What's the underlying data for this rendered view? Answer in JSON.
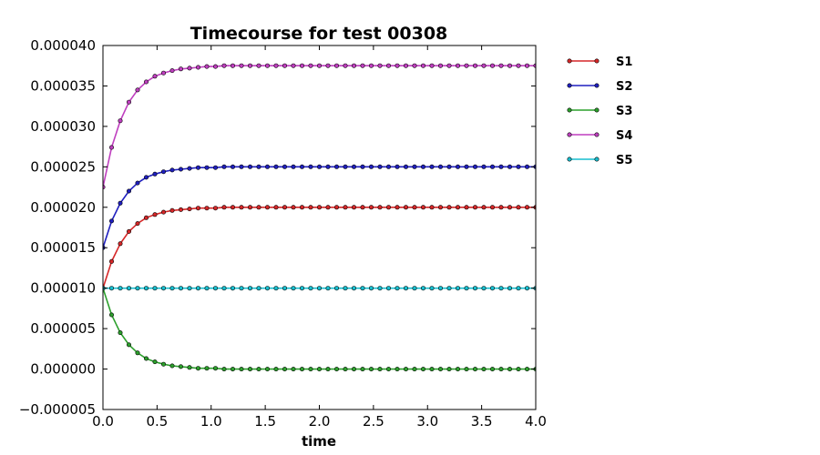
{
  "chart_data": {
    "type": "line",
    "title": "Timecourse for test 00308",
    "xlabel": "time",
    "ylabel": "",
    "xlim": [
      0.0,
      4.0
    ],
    "ylim": [
      -5e-06,
      4e-05
    ],
    "xticks": [
      "0.0",
      "0.5",
      "1.0",
      "1.5",
      "2.0",
      "2.5",
      "3.0",
      "3.5",
      "4.0"
    ],
    "yticks": [
      "−0.000005",
      "0.000000",
      "0.000005",
      "0.000010",
      "0.000015",
      "0.000020",
      "0.000025",
      "0.000030",
      "0.000035",
      "0.000040"
    ],
    "grid": false,
    "legend_position": "right, outside plot area",
    "x": [
      0.0,
      0.08,
      0.16,
      0.24,
      0.32,
      0.4,
      0.48,
      0.56,
      0.64,
      0.72,
      0.8,
      0.88,
      0.96,
      1.04,
      1.12,
      1.2,
      1.28,
      1.36,
      1.44,
      1.52,
      1.6,
      1.68,
      1.76,
      1.84,
      1.92,
      2.0,
      2.08,
      2.16,
      2.24,
      2.32,
      2.4,
      2.48,
      2.56,
      2.64,
      2.72,
      2.8,
      2.88,
      2.96,
      3.04,
      3.12,
      3.2,
      3.28,
      3.36,
      3.44,
      3.52,
      3.6,
      3.68,
      3.76,
      3.84,
      3.92,
      4.0
    ],
    "series": [
      {
        "name": "S1",
        "color": "#d62728",
        "values": [
          1e-05,
          1.33e-05,
          1.55e-05,
          1.7e-05,
          1.8e-05,
          1.87e-05,
          1.91e-05,
          1.94e-05,
          1.96e-05,
          1.97e-05,
          1.98e-05,
          1.99e-05,
          1.99e-05,
          1.99e-05,
          2e-05,
          2e-05,
          2e-05,
          2e-05,
          2e-05,
          2e-05,
          2e-05,
          2e-05,
          2e-05,
          2e-05,
          2e-05,
          2e-05,
          2e-05,
          2e-05,
          2e-05,
          2e-05,
          2e-05,
          2e-05,
          2e-05,
          2e-05,
          2e-05,
          2e-05,
          2e-05,
          2e-05,
          2e-05,
          2e-05,
          2e-05,
          2e-05,
          2e-05,
          2e-05,
          2e-05,
          2e-05,
          2e-05,
          2e-05,
          2e-05,
          2e-05,
          2e-05
        ]
      },
      {
        "name": "S2",
        "color": "#1f1fbf",
        "values": [
          1.5e-05,
          1.83e-05,
          2.05e-05,
          2.2e-05,
          2.3e-05,
          2.37e-05,
          2.41e-05,
          2.44e-05,
          2.46e-05,
          2.47e-05,
          2.48e-05,
          2.49e-05,
          2.49e-05,
          2.49e-05,
          2.5e-05,
          2.5e-05,
          2.5e-05,
          2.5e-05,
          2.5e-05,
          2.5e-05,
          2.5e-05,
          2.5e-05,
          2.5e-05,
          2.5e-05,
          2.5e-05,
          2.5e-05,
          2.5e-05,
          2.5e-05,
          2.5e-05,
          2.5e-05,
          2.5e-05,
          2.5e-05,
          2.5e-05,
          2.5e-05,
          2.5e-05,
          2.5e-05,
          2.5e-05,
          2.5e-05,
          2.5e-05,
          2.5e-05,
          2.5e-05,
          2.5e-05,
          2.5e-05,
          2.5e-05,
          2.5e-05,
          2.5e-05,
          2.5e-05,
          2.5e-05,
          2.5e-05,
          2.5e-05,
          2.5e-05
        ]
      },
      {
        "name": "S3",
        "color": "#2ca02c",
        "values": [
          1e-05,
          6.7e-06,
          4.5e-06,
          3e-06,
          2e-06,
          1.3e-06,
          9e-07,
          6e-07,
          4e-07,
          3e-07,
          2e-07,
          1e-07,
          1e-07,
          1e-07,
          0.0,
          0.0,
          0.0,
          0.0,
          0.0,
          0.0,
          0.0,
          0.0,
          0.0,
          0.0,
          0.0,
          0.0,
          0.0,
          0.0,
          0.0,
          0.0,
          0.0,
          0.0,
          0.0,
          0.0,
          0.0,
          0.0,
          0.0,
          0.0,
          0.0,
          0.0,
          0.0,
          0.0,
          0.0,
          0.0,
          0.0,
          0.0,
          0.0,
          0.0,
          0.0,
          0.0,
          0.0
        ]
      },
      {
        "name": "S4",
        "color": "#bf3fbf",
        "values": [
          2.25e-05,
          2.74e-05,
          3.07e-05,
          3.3e-05,
          3.45e-05,
          3.55e-05,
          3.62e-05,
          3.66e-05,
          3.69e-05,
          3.71e-05,
          3.72e-05,
          3.73e-05,
          3.74e-05,
          3.74e-05,
          3.75e-05,
          3.75e-05,
          3.75e-05,
          3.75e-05,
          3.75e-05,
          3.75e-05,
          3.75e-05,
          3.75e-05,
          3.75e-05,
          3.75e-05,
          3.75e-05,
          3.75e-05,
          3.75e-05,
          3.75e-05,
          3.75e-05,
          3.75e-05,
          3.75e-05,
          3.75e-05,
          3.75e-05,
          3.75e-05,
          3.75e-05,
          3.75e-05,
          3.75e-05,
          3.75e-05,
          3.75e-05,
          3.75e-05,
          3.75e-05,
          3.75e-05,
          3.75e-05,
          3.75e-05,
          3.75e-05,
          3.75e-05,
          3.75e-05,
          3.75e-05,
          3.75e-05,
          3.75e-05,
          3.75e-05
        ]
      },
      {
        "name": "S5",
        "color": "#17becf",
        "values": [
          1e-05,
          1e-05,
          1e-05,
          1e-05,
          1e-05,
          1e-05,
          1e-05,
          1e-05,
          1e-05,
          1e-05,
          1e-05,
          1e-05,
          1e-05,
          1e-05,
          1e-05,
          1e-05,
          1e-05,
          1e-05,
          1e-05,
          1e-05,
          1e-05,
          1e-05,
          1e-05,
          1e-05,
          1e-05,
          1e-05,
          1e-05,
          1e-05,
          1e-05,
          1e-05,
          1e-05,
          1e-05,
          1e-05,
          1e-05,
          1e-05,
          1e-05,
          1e-05,
          1e-05,
          1e-05,
          1e-05,
          1e-05,
          1e-05,
          1e-05,
          1e-05,
          1e-05,
          1e-05,
          1e-05,
          1e-05,
          1e-05,
          1e-05,
          1e-05
        ]
      }
    ]
  }
}
